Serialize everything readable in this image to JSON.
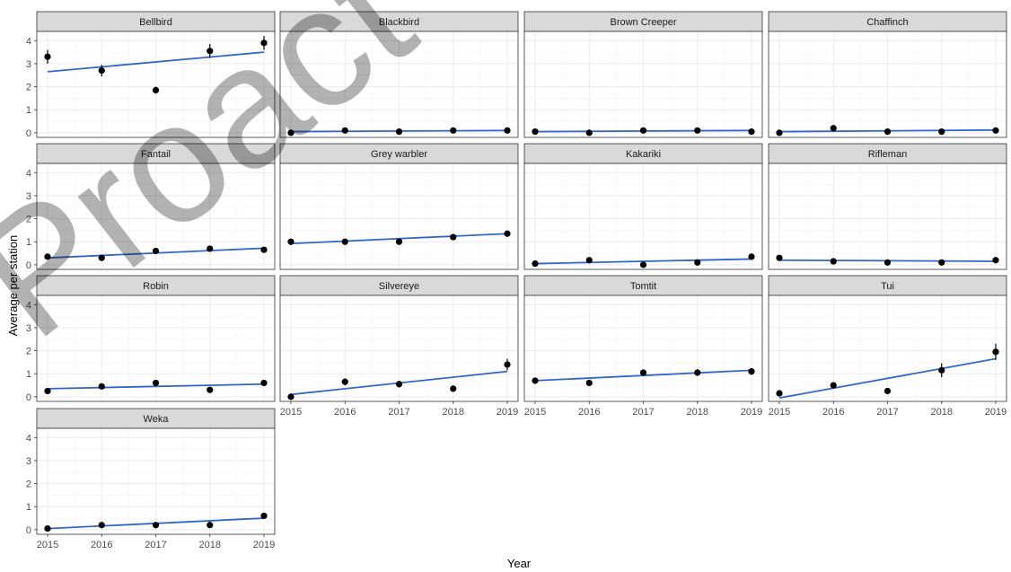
{
  "chart_data": {
    "type": "scatter",
    "xlabel": "Year",
    "ylabel": "Average per station",
    "x": [
      2015,
      2016,
      2017,
      2018,
      2019
    ],
    "xticks": [
      "2015",
      "2016",
      "2017",
      "2018",
      "2019"
    ],
    "ylim": [
      -0.2,
      4.4
    ],
    "yticks": [
      "0",
      "1",
      "2",
      "3",
      "4"
    ],
    "grid": true,
    "point_color": "#000000",
    "trend_color": "#3366cc",
    "panel_fill": "#ffffff",
    "strip_fill": "#d9d9d9",
    "grid_color": "#ebebeb",
    "panels": [
      {
        "name": "Bellbird",
        "values": [
          3.3,
          2.7,
          1.85,
          3.55,
          3.9
        ],
        "err": [
          0.3,
          0.25,
          0.15,
          0.3,
          0.3
        ],
        "trend": [
          2.65,
          3.5
        ]
      },
      {
        "name": "Blackbird",
        "values": [
          0.0,
          0.1,
          0.05,
          0.1,
          0.1
        ],
        "err": [
          0.05,
          0.05,
          0.05,
          0.05,
          0.05
        ],
        "trend": [
          0.05,
          0.1
        ]
      },
      {
        "name": "Brown Creeper",
        "values": [
          0.05,
          0.0,
          0.1,
          0.1,
          0.05
        ],
        "err": [
          0.05,
          0.05,
          0.05,
          0.05,
          0.05
        ],
        "trend": [
          0.05,
          0.1
        ]
      },
      {
        "name": "Chaffinch",
        "values": [
          0.0,
          0.2,
          0.05,
          0.05,
          0.1
        ],
        "err": [
          0.05,
          0.05,
          0.05,
          0.05,
          0.05
        ],
        "trend": [
          0.05,
          0.12
        ]
      },
      {
        "name": "Fantail",
        "values": [
          0.35,
          0.3,
          0.6,
          0.7,
          0.65
        ],
        "err": [
          0.1,
          0.1,
          0.1,
          0.1,
          0.1
        ],
        "trend": [
          0.3,
          0.72
        ]
      },
      {
        "name": "Grey warbler",
        "values": [
          1.0,
          1.0,
          1.0,
          1.2,
          1.35
        ],
        "err": [
          0.1,
          0.1,
          0.1,
          0.1,
          0.1
        ],
        "trend": [
          0.92,
          1.35
        ]
      },
      {
        "name": "Kakariki",
        "values": [
          0.05,
          0.2,
          0.0,
          0.1,
          0.35
        ],
        "err": [
          0.05,
          0.05,
          0.05,
          0.05,
          0.05
        ],
        "trend": [
          0.05,
          0.25
        ]
      },
      {
        "name": "Rifleman",
        "values": [
          0.3,
          0.15,
          0.1,
          0.1,
          0.2
        ],
        "err": [
          0.05,
          0.05,
          0.05,
          0.05,
          0.05
        ],
        "trend": [
          0.2,
          0.15
        ]
      },
      {
        "name": "Robin",
        "values": [
          0.25,
          0.45,
          0.6,
          0.3,
          0.6
        ],
        "err": [
          0.1,
          0.1,
          0.1,
          0.1,
          0.1
        ],
        "trend": [
          0.35,
          0.55
        ]
      },
      {
        "name": "Silvereye",
        "values": [
          0.0,
          0.65,
          0.55,
          0.35,
          1.4
        ],
        "err": [
          0.1,
          0.15,
          0.15,
          0.1,
          0.25
        ],
        "trend": [
          0.1,
          1.1
        ]
      },
      {
        "name": "Tomtit",
        "values": [
          0.7,
          0.6,
          1.05,
          1.05,
          1.1
        ],
        "err": [
          0.1,
          0.1,
          0.1,
          0.15,
          0.15
        ],
        "trend": [
          0.7,
          1.15
        ]
      },
      {
        "name": "Tui",
        "values": [
          0.15,
          0.5,
          0.25,
          1.15,
          1.95
        ],
        "err": [
          0.1,
          0.1,
          0.1,
          0.3,
          0.35
        ],
        "trend": [
          -0.05,
          1.65
        ]
      },
      {
        "name": "Weka",
        "values": [
          0.05,
          0.2,
          0.2,
          0.2,
          0.6
        ],
        "err": [
          0.05,
          0.05,
          0.05,
          0.05,
          0.1
        ],
        "trend": [
          0.05,
          0.5
        ]
      }
    ]
  },
  "watermark": {
    "text": "Proact"
  }
}
